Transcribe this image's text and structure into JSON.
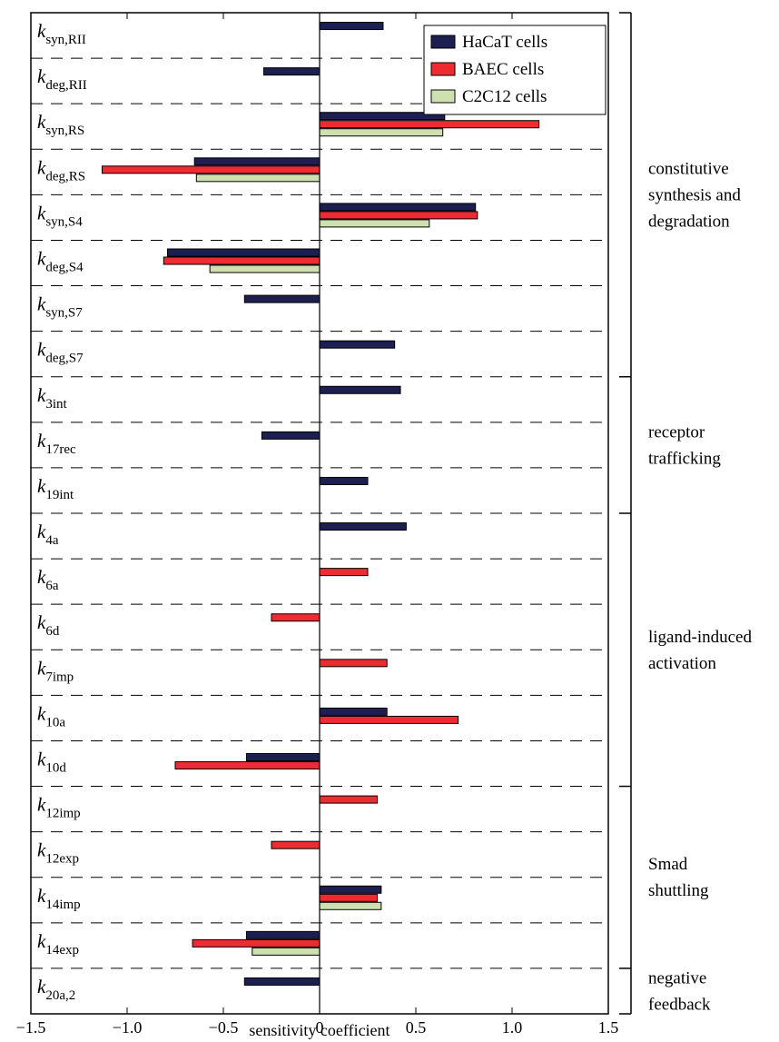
{
  "colors": {
    "HaCaT cells": "#1c1f4f",
    "BAEC cells": "#ee2b30",
    "C2C12 cells": "#cfe0b0"
  },
  "chart_data": {
    "type": "bar",
    "orientation": "horizontal",
    "xlabel": "sensitivity coefficient",
    "xlim": [
      -1.5,
      1.5
    ],
    "xticks": [
      -1.5,
      -1.0,
      -0.5,
      0,
      0.5,
      1.0,
      1.5
    ],
    "xtick_labels": [
      "−1.5",
      "−1.0",
      "−0.5",
      "0",
      "0.5",
      "1.0",
      "1.5"
    ],
    "grid": "dashed horizontal separators between parameters",
    "legend_position": "top-right",
    "series": [
      {
        "name": "HaCaT cells"
      },
      {
        "name": "BAEC cells"
      },
      {
        "name": "C2C12 cells"
      }
    ],
    "categories": [
      {
        "base": "k",
        "sub": "syn,RII",
        "values": {
          "HaCaT cells": 0.33
        }
      },
      {
        "base": "k",
        "sub": "deg,RII",
        "values": {
          "HaCaT cells": -0.29
        }
      },
      {
        "base": "k",
        "sub": "syn,RS",
        "values": {
          "HaCaT cells": 0.65,
          "BAEC cells": 1.14,
          "C2C12 cells": 0.64
        }
      },
      {
        "base": "k",
        "sub": "deg,RS",
        "values": {
          "HaCaT cells": -0.65,
          "BAEC cells": -1.13,
          "C2C12 cells": -0.64
        }
      },
      {
        "base": "k",
        "sub": "syn,S4",
        "values": {
          "HaCaT cells": 0.81,
          "BAEC cells": 0.82,
          "C2C12 cells": 0.57
        }
      },
      {
        "base": "k",
        "sub": "deg,S4",
        "values": {
          "HaCaT cells": -0.79,
          "BAEC cells": -0.81,
          "C2C12 cells": -0.57
        }
      },
      {
        "base": "k",
        "sub": "syn,S7",
        "values": {
          "HaCaT cells": -0.39
        }
      },
      {
        "base": "k",
        "sub": "deg,S7",
        "values": {
          "HaCaT cells": 0.39
        }
      },
      {
        "base": "k",
        "sub": "3int",
        "values": {
          "HaCaT cells": 0.42
        }
      },
      {
        "base": "k",
        "sub": "17rec",
        "values": {
          "HaCaT cells": -0.3
        }
      },
      {
        "base": "k",
        "sub": "19int",
        "values": {
          "HaCaT cells": 0.25
        }
      },
      {
        "base": "k",
        "sub": "4a",
        "values": {
          "HaCaT cells": 0.45
        }
      },
      {
        "base": "k",
        "sub": "6a",
        "values": {
          "BAEC cells": 0.25
        }
      },
      {
        "base": "k",
        "sub": "6d",
        "values": {
          "BAEC cells": -0.25
        }
      },
      {
        "base": "k",
        "sub": "7imp",
        "values": {
          "BAEC cells": 0.35
        }
      },
      {
        "base": "k",
        "sub": "10a",
        "values": {
          "HaCaT cells": 0.35,
          "BAEC cells": 0.72
        }
      },
      {
        "base": "k",
        "sub": "10d",
        "values": {
          "HaCaT cells": -0.38,
          "BAEC cells": -0.75
        }
      },
      {
        "base": "k",
        "sub": "12imp",
        "values": {
          "BAEC cells": 0.3
        }
      },
      {
        "base": "k",
        "sub": "12exp",
        "values": {
          "BAEC cells": -0.25
        }
      },
      {
        "base": "k",
        "sub": "14imp",
        "values": {
          "HaCaT cells": 0.32,
          "BAEC cells": 0.3,
          "C2C12 cells": 0.32
        }
      },
      {
        "base": "k",
        "sub": "14exp",
        "values": {
          "HaCaT cells": -0.38,
          "BAEC cells": -0.66,
          "C2C12 cells": -0.35
        }
      },
      {
        "base": "k",
        "sub": "20a,2",
        "values": {
          "HaCaT cells": -0.39
        }
      }
    ],
    "groups": [
      {
        "lines": [
          "constitutive",
          "synthesis and",
          "degradation"
        ],
        "first": 0,
        "last": 7
      },
      {
        "lines": [
          "receptor",
          "trafficking"
        ],
        "first": 8,
        "last": 10
      },
      {
        "lines": [
          "ligand-induced",
          "activation"
        ],
        "first": 11,
        "last": 16
      },
      {
        "lines": [
          "Smad",
          "shuttling"
        ],
        "first": 17,
        "last": 20
      },
      {
        "lines": [
          "negative",
          "feedback"
        ],
        "first": 21,
        "last": 21
      }
    ]
  }
}
